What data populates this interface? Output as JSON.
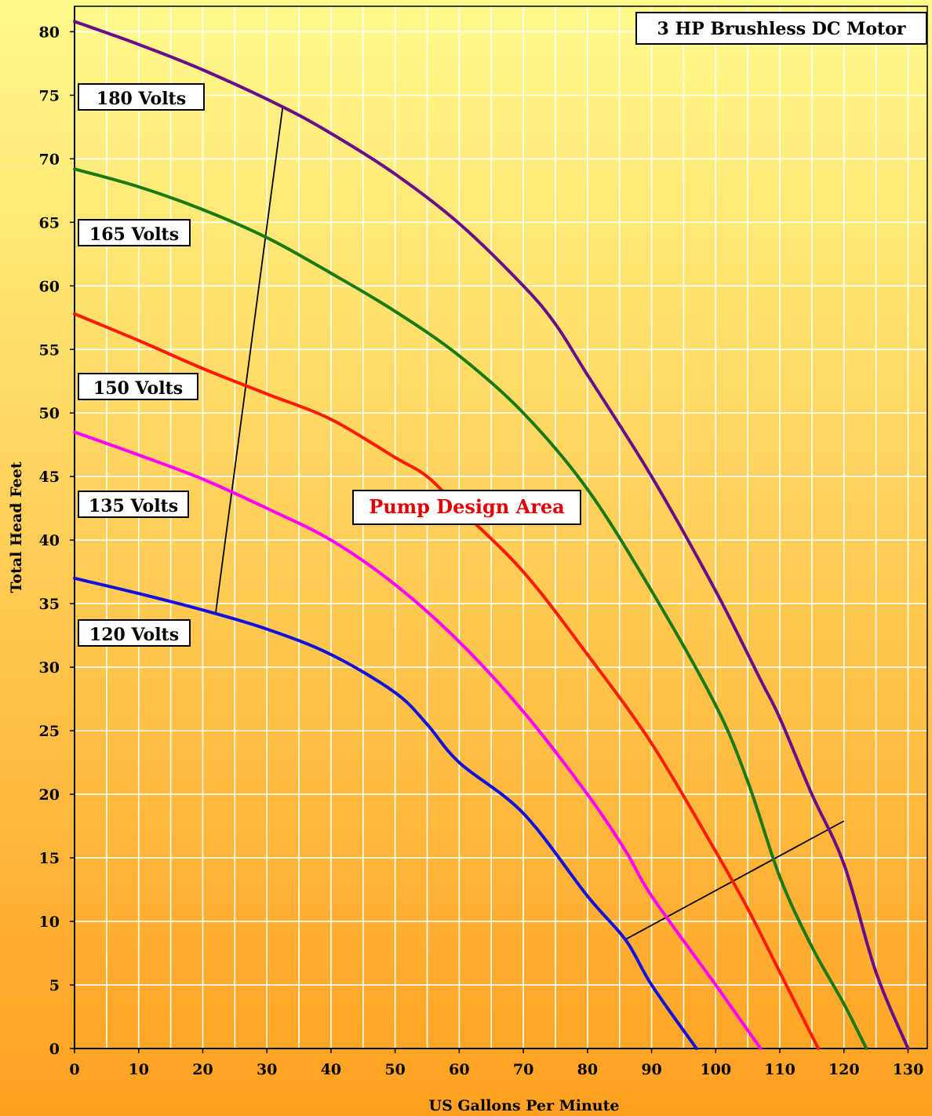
{
  "chart_data": {
    "type": "line",
    "title": "3 HP Brushless DC Motor",
    "xlabel": "US Gallons Per Minute",
    "ylabel": "Total Head Feet",
    "xlim": [
      0,
      133
    ],
    "ylim": [
      0,
      82
    ],
    "x_ticks": [
      0,
      10,
      20,
      30,
      40,
      50,
      60,
      70,
      80,
      90,
      100,
      110,
      120,
      130
    ],
    "y_ticks": [
      0,
      5,
      10,
      15,
      20,
      25,
      30,
      35,
      40,
      45,
      50,
      55,
      60,
      65,
      70,
      75,
      80
    ],
    "grid": true,
    "series": [
      {
        "name": "180 Volts",
        "color": "#6a0d8a",
        "points": [
          [
            0,
            80.8
          ],
          [
            10,
            79
          ],
          [
            20,
            77
          ],
          [
            32,
            74.2
          ],
          [
            40,
            72
          ],
          [
            50,
            68.8
          ],
          [
            60,
            64.9
          ],
          [
            70,
            60
          ],
          [
            75,
            57
          ],
          [
            80,
            53
          ],
          [
            90,
            45
          ],
          [
            100,
            36
          ],
          [
            107,
            29
          ],
          [
            110,
            26
          ],
          [
            115,
            20
          ],
          [
            120,
            14.5
          ],
          [
            125,
            6
          ],
          [
            130,
            0
          ]
        ]
      },
      {
        "name": "165 Volts",
        "color": "#1a7a12",
        "points": [
          [
            0,
            69.2
          ],
          [
            10,
            67.8
          ],
          [
            20,
            66
          ],
          [
            30,
            63.8
          ],
          [
            40,
            61
          ],
          [
            50,
            58
          ],
          [
            60,
            54.5
          ],
          [
            70,
            50
          ],
          [
            80,
            44
          ],
          [
            90,
            36
          ],
          [
            100,
            27
          ],
          [
            105,
            21
          ],
          [
            110,
            13.5
          ],
          [
            115,
            8
          ],
          [
            120,
            3.5
          ],
          [
            123.5,
            0
          ]
        ]
      },
      {
        "name": "150 Volts",
        "color": "#ff1a00",
        "points": [
          [
            0,
            57.8
          ],
          [
            10,
            55.7
          ],
          [
            20,
            53.5
          ],
          [
            30,
            51.5
          ],
          [
            40,
            49.5
          ],
          [
            50,
            46.5
          ],
          [
            55,
            45
          ],
          [
            60,
            42.5
          ],
          [
            70,
            37.5
          ],
          [
            80,
            31
          ],
          [
            90,
            24
          ],
          [
            100,
            15.5
          ],
          [
            105,
            11
          ],
          [
            110,
            6
          ],
          [
            116,
            0
          ]
        ]
      },
      {
        "name": "135 Volts",
        "color": "#ff00ff",
        "points": [
          [
            0,
            48.5
          ],
          [
            10,
            46.7
          ],
          [
            20,
            44.8
          ],
          [
            30,
            42.5
          ],
          [
            40,
            40
          ],
          [
            50,
            36.5
          ],
          [
            60,
            32
          ],
          [
            70,
            26.5
          ],
          [
            80,
            20
          ],
          [
            86,
            15.5
          ],
          [
            90,
            12
          ],
          [
            100,
            5
          ],
          [
            107,
            0
          ]
        ]
      },
      {
        "name": "120 Volts",
        "color": "#1010e0",
        "points": [
          [
            0,
            37
          ],
          [
            10,
            35.8
          ],
          [
            20,
            34.5
          ],
          [
            30,
            33
          ],
          [
            40,
            31
          ],
          [
            50,
            28
          ],
          [
            55,
            25.5
          ],
          [
            60,
            22.5
          ],
          [
            70,
            18.5
          ],
          [
            80,
            12
          ],
          [
            86,
            8.5
          ],
          [
            90,
            5
          ],
          [
            97,
            0
          ]
        ]
      }
    ],
    "annotations": {
      "design_area_label": "Pump Design Area",
      "design_area_label_color": "#e00000",
      "boundary_lines": [
        [
          [
            22,
            34.2
          ],
          [
            32.5,
            74.2
          ]
        ],
        [
          [
            86,
            8.6
          ],
          [
            120,
            17.9
          ]
        ]
      ]
    },
    "background_gradient": [
      "#fffa8c",
      "#ffa020"
    ]
  }
}
